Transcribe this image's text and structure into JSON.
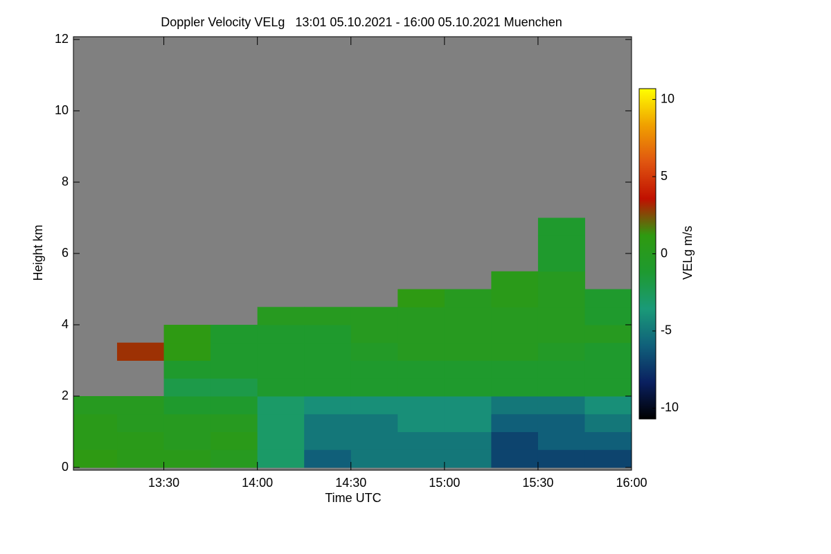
{
  "chart_data": {
    "type": "heatmap",
    "title": "Doppler Velocity VELg   13:01 05.10.2021 - 16:00 05.10.2021 Muenchen",
    "xlabel": "Time UTC",
    "ylabel": "Height km",
    "colorbar_label": "VELg m/s",
    "background": "#808080",
    "colormap": [
      "#000000",
      "#0a2060",
      "#10607a",
      "#1a9a78",
      "#1e9a30",
      "#2f9a10",
      "#c01000",
      "#e05510",
      "#f0a000",
      "#ffff00"
    ],
    "xlim": [
      781,
      960
    ],
    "xticks": [
      {
        "value": 810,
        "label": "13:30"
      },
      {
        "value": 840,
        "label": "14:00"
      },
      {
        "value": 870,
        "label": "14:30"
      },
      {
        "value": 900,
        "label": "15:00"
      },
      {
        "value": 930,
        "label": "15:30"
      },
      {
        "value": 960,
        "label": "16:00"
      }
    ],
    "ylim": [
      0,
      12
    ],
    "yticks": [
      0,
      2,
      4,
      6,
      8,
      10,
      12
    ],
    "clim": [
      -10.7,
      10.7
    ],
    "cticks": [
      -10,
      -5,
      0,
      5,
      10
    ],
    "x_edges": [
      781,
      795,
      810,
      825,
      840,
      855,
      870,
      885,
      900,
      915,
      930,
      945,
      960
    ],
    "y_edges": [
      0,
      0.5,
      1,
      1.5,
      2,
      2.5,
      3,
      3.5,
      4,
      4.5,
      5,
      5.5,
      6,
      6.5,
      7
    ],
    "values": [
      [
        1,
        0.5,
        0.5,
        0,
        -3,
        -6,
        -5,
        -5,
        -5,
        -7,
        -7,
        -7
      ],
      [
        0.5,
        0.5,
        0,
        0.5,
        -3,
        -5,
        -5,
        -5,
        -5,
        -7,
        -6,
        -6
      ],
      [
        0.5,
        0,
        0,
        0,
        -3,
        -5,
        -5,
        -4,
        -4,
        -6,
        -6,
        -5
      ],
      [
        0,
        0,
        -1,
        -1,
        -3,
        -4,
        -4,
        -4,
        -4,
        -5,
        -5,
        -4
      ],
      [
        null,
        null,
        -2,
        -2,
        -1,
        -1,
        -1,
        -1,
        -1,
        -1,
        -1,
        -1
      ],
      [
        null,
        null,
        -1,
        -1,
        -1,
        -1,
        -1,
        -1,
        -1,
        -1,
        -1,
        -1
      ],
      [
        null,
        3,
        1,
        -1,
        -1,
        -1,
        -0.5,
        0,
        0,
        0,
        -0.5,
        -1
      ],
      [
        null,
        null,
        1,
        -1,
        -1,
        -1,
        0,
        0,
        0,
        0,
        0,
        0
      ],
      [
        null,
        null,
        null,
        null,
        0,
        0,
        0,
        0,
        0,
        0,
        0,
        -1
      ],
      [
        null,
        null,
        null,
        null,
        null,
        null,
        null,
        1,
        0,
        0.5,
        0,
        -1
      ],
      [
        null,
        null,
        null,
        null,
        null,
        null,
        null,
        null,
        null,
        0.5,
        0,
        null
      ],
      [
        null,
        null,
        null,
        null,
        null,
        null,
        null,
        null,
        null,
        null,
        -1,
        null
      ],
      [
        null,
        null,
        null,
        null,
        null,
        null,
        null,
        null,
        null,
        null,
        -1,
        null
      ],
      [
        null,
        null,
        null,
        null,
        null,
        null,
        null,
        null,
        null,
        null,
        -1,
        null
      ]
    ]
  }
}
